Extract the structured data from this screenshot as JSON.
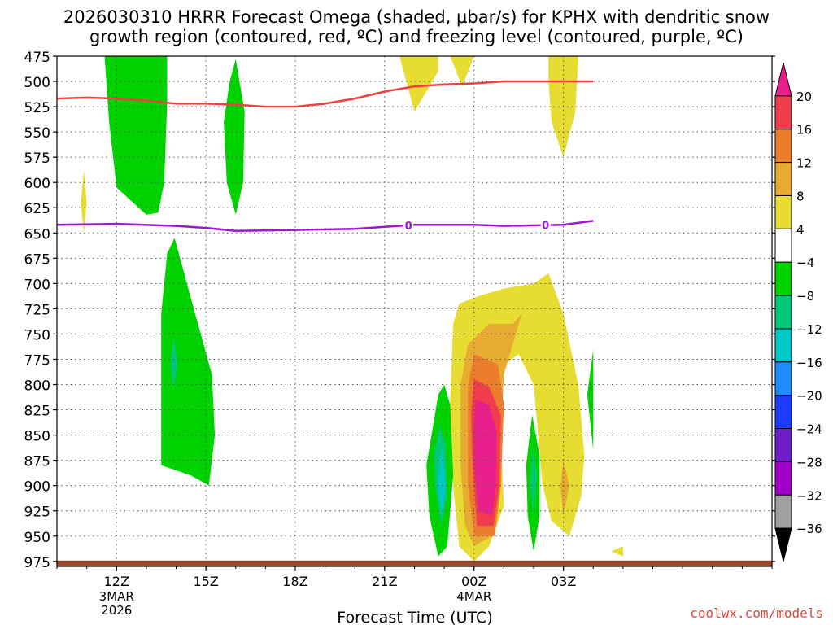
{
  "title_line1": "2026030310 HRRR Forecast Omega (shaded, µbar/s) for KPHX with dendritic snow",
  "title_line2": "growth region (contoured, red, ºC) and freezing level (contoured, purple, ºC)",
  "credit": "coolwx.com/models",
  "chart_data": {
    "type": "time-height cross section (filled contour + line contours)",
    "xlabel": "Forecast Time (UTC)",
    "x_range_hours": [
      0,
      24
    ],
    "x_ticks": [
      {
        "hour": 2,
        "label": "12Z",
        "sub": [
          "3MAR",
          "2026"
        ]
      },
      {
        "hour": 5,
        "label": "15Z",
        "sub": []
      },
      {
        "hour": 8,
        "label": "18Z",
        "sub": []
      },
      {
        "hour": 11,
        "label": "21Z",
        "sub": []
      },
      {
        "hour": 14,
        "label": "00Z",
        "sub": [
          "4MAR"
        ]
      },
      {
        "hour": 17,
        "label": "03Z",
        "sub": []
      }
    ],
    "y_axis": "pressure (hPa), inverted",
    "ylim": [
      475,
      980
    ],
    "y_ticks": [
      475,
      500,
      525,
      550,
      575,
      600,
      625,
      650,
      675,
      700,
      725,
      750,
      775,
      800,
      825,
      850,
      875,
      900,
      925,
      950,
      975
    ],
    "colorbar": {
      "labels": [
        "20",
        "16",
        "12",
        "8",
        "4",
        "−4",
        "−8",
        "−12",
        "−16",
        "−20",
        "−24",
        "−28",
        "−32",
        "−36"
      ],
      "bins": [
        {
          "range": ">20",
          "color": "#e8208c"
        },
        {
          "range": "16 to 20",
          "color": "#f03c4b"
        },
        {
          "range": "12 to 16",
          "color": "#ec7d2c"
        },
        {
          "range": "8 to 12",
          "color": "#e6ab30"
        },
        {
          "range": "4 to 8",
          "color": "#e6dc32"
        },
        {
          "range": "-4 to 4",
          "color": "#ffffff"
        },
        {
          "range": "-8 to -4",
          "color": "#00d200"
        },
        {
          "range": "-12 to -8",
          "color": "#00c878"
        },
        {
          "range": "-16 to -12",
          "color": "#00c8c8"
        },
        {
          "range": "-20 to -16",
          "color": "#1e8cff"
        },
        {
          "range": "-24 to -20",
          "color": "#1e3cff"
        },
        {
          "range": "-28 to -24",
          "color": "#6e1ec8"
        },
        {
          "range": "-32 to -28",
          "color": "#a000c8"
        },
        {
          "range": "-36 to -32",
          "color": "#a0a0a0"
        },
        {
          "range": "<-36",
          "color": "#000000"
        }
      ]
    },
    "freezing_level": {
      "label": "0",
      "color": "#9a18d2",
      "points": [
        [
          0,
          642
        ],
        [
          2,
          641
        ],
        [
          4,
          643
        ],
        [
          5,
          645
        ],
        [
          6,
          648
        ],
        [
          8,
          647
        ],
        [
          10,
          646
        ],
        [
          11,
          644
        ],
        [
          12,
          642
        ],
        [
          14,
          642
        ],
        [
          15,
          643
        ],
        [
          17,
          642
        ],
        [
          18,
          638
        ]
      ]
    },
    "dgz_top_contour": {
      "color": "#f04040",
      "points": [
        [
          0,
          517
        ],
        [
          1,
          516
        ],
        [
          2,
          517
        ],
        [
          3,
          519
        ],
        [
          4,
          522
        ],
        [
          5,
          522
        ],
        [
          6,
          523
        ],
        [
          7,
          525
        ],
        [
          8,
          525
        ],
        [
          9,
          522
        ],
        [
          10,
          517
        ],
        [
          11,
          510
        ],
        [
          12,
          505
        ],
        [
          13,
          503
        ],
        [
          14,
          502
        ],
        [
          15,
          500
        ],
        [
          16,
          500
        ],
        [
          17,
          500
        ],
        [
          18,
          500
        ]
      ]
    },
    "omega_regions": [
      {
        "value": "-4 to -8",
        "color": "#00d200",
        "points": [
          [
            1.6,
            475
          ],
          [
            3.7,
            475
          ],
          [
            3.7,
            520
          ],
          [
            3.6,
            600
          ],
          [
            3.4,
            630
          ],
          [
            3.0,
            632
          ],
          [
            2.0,
            605
          ],
          [
            1.75,
            540
          ]
        ]
      },
      {
        "value": "-4 to -8",
        "color": "#00d200",
        "points": [
          [
            6.0,
            478
          ],
          [
            6.3,
            530
          ],
          [
            6.25,
            600
          ],
          [
            6.0,
            632
          ],
          [
            5.7,
            600
          ],
          [
            5.6,
            540
          ],
          [
            5.8,
            500
          ]
        ]
      },
      {
        "value": "-4 to -8",
        "color": "#00d200",
        "points": [
          [
            3.95,
            655
          ],
          [
            4.5,
            715
          ],
          [
            5.2,
            790
          ],
          [
            5.3,
            850
          ],
          [
            5.1,
            900
          ],
          [
            4.5,
            890
          ],
          [
            3.5,
            880
          ],
          [
            3.5,
            730
          ],
          [
            3.7,
            670
          ]
        ]
      },
      {
        "value": "-8 to -12",
        "color": "#00c878",
        "points": [
          [
            3.92,
            752
          ],
          [
            4.05,
            780
          ],
          [
            3.92,
            805
          ],
          [
            3.8,
            780
          ]
        ]
      },
      {
        "value": "4 to 8",
        "color": "#e6dc32",
        "points": [
          [
            12.3,
            475
          ],
          [
            12.8,
            475
          ],
          [
            12.8,
            490
          ],
          [
            12.0,
            530
          ],
          [
            11.5,
            475
          ]
        ]
      },
      {
        "value": "4 to 8",
        "color": "#e6dc32",
        "points": [
          [
            0.9,
            588
          ],
          [
            1.0,
            620
          ],
          [
            0.9,
            650
          ],
          [
            0.8,
            620
          ]
        ]
      },
      {
        "value": "4 to 8",
        "color": "#e6dc32",
        "points": [
          [
            13.2,
            475
          ],
          [
            14.0,
            475
          ],
          [
            13.8,
            490
          ],
          [
            13.6,
            505
          ],
          [
            13.4,
            490
          ]
        ]
      },
      {
        "value": "4 to 8",
        "color": "#e6dc32",
        "points": [
          [
            16.5,
            475
          ],
          [
            17.5,
            475
          ],
          [
            17.4,
            530
          ],
          [
            17.0,
            575
          ],
          [
            16.6,
            540
          ],
          [
            16.5,
            500
          ]
        ]
      },
      {
        "value": "4 to 8",
        "color": "#e6dc32",
        "points": [
          [
            13.3,
            740
          ],
          [
            13.5,
            720
          ],
          [
            14.2,
            712
          ],
          [
            15.0,
            705
          ],
          [
            16.0,
            700
          ],
          [
            16.5,
            690
          ],
          [
            17.0,
            730
          ],
          [
            17.5,
            800
          ],
          [
            17.7,
            870
          ],
          [
            17.6,
            910
          ],
          [
            17.2,
            950
          ],
          [
            16.6,
            935
          ],
          [
            16.3,
            900
          ],
          [
            16.0,
            800
          ],
          [
            15.5,
            770
          ],
          [
            15.0,
            780
          ],
          [
            14.9,
            860
          ],
          [
            15.0,
            920
          ],
          [
            14.5,
            960
          ],
          [
            14.0,
            975
          ],
          [
            13.5,
            960
          ],
          [
            13.3,
            900
          ],
          [
            13.2,
            820
          ]
        ]
      },
      {
        "value": "4 to 8",
        "color": "#e6dc32",
        "points": [
          [
            19.0,
            960
          ],
          [
            18.6,
            965
          ],
          [
            19.0,
            970
          ]
        ]
      },
      {
        "value": "8 to 12",
        "color": "#e6ab30",
        "points": [
          [
            13.8,
            760
          ],
          [
            14.5,
            740
          ],
          [
            15.3,
            740
          ],
          [
            15.6,
            730
          ],
          [
            15.3,
            760
          ],
          [
            15.0,
            790
          ],
          [
            14.9,
            850
          ],
          [
            14.9,
            900
          ],
          [
            14.6,
            950
          ],
          [
            14.0,
            960
          ],
          [
            13.7,
            940
          ],
          [
            13.55,
            880
          ],
          [
            13.55,
            800
          ]
        ]
      },
      {
        "value": "8 to 12",
        "color": "#e6ab30",
        "points": [
          [
            17.0,
            875
          ],
          [
            17.2,
            900
          ],
          [
            17.0,
            930
          ],
          [
            16.9,
            900
          ]
        ]
      },
      {
        "value": "12 to 16",
        "color": "#ec7d2c",
        "points": [
          [
            14.0,
            770
          ],
          [
            14.8,
            780
          ],
          [
            15.0,
            820
          ],
          [
            14.9,
            900
          ],
          [
            14.7,
            950
          ],
          [
            14.0,
            950
          ],
          [
            13.8,
            900
          ],
          [
            13.8,
            800
          ]
        ]
      },
      {
        "value": "16 to 20",
        "color": "#f03c4b",
        "points": [
          [
            14.0,
            795
          ],
          [
            14.5,
            802
          ],
          [
            14.9,
            830
          ],
          [
            14.85,
            900
          ],
          [
            14.65,
            940
          ],
          [
            14.1,
            940
          ],
          [
            13.95,
            880
          ],
          [
            13.9,
            830
          ]
        ]
      },
      {
        "value": ">20",
        "color": "#e8208c",
        "points": [
          [
            14.05,
            815
          ],
          [
            14.5,
            820
          ],
          [
            14.75,
            845
          ],
          [
            14.75,
            900
          ],
          [
            14.6,
            930
          ],
          [
            14.15,
            925
          ],
          [
            14.0,
            880
          ],
          [
            14.0,
            840
          ]
        ]
      },
      {
        "value": "-4 to -8",
        "color": "#00d200",
        "points": [
          [
            12.8,
            810
          ],
          [
            13.0,
            800
          ],
          [
            13.2,
            820
          ],
          [
            13.3,
            890
          ],
          [
            13.1,
            960
          ],
          [
            12.8,
            970
          ],
          [
            12.5,
            930
          ],
          [
            12.4,
            880
          ]
        ]
      },
      {
        "value": "-8 to -12",
        "color": "#00c878",
        "points": [
          [
            12.85,
            840
          ],
          [
            13.05,
            860
          ],
          [
            13.1,
            910
          ],
          [
            12.9,
            940
          ],
          [
            12.7,
            900
          ],
          [
            12.65,
            870
          ]
        ]
      },
      {
        "value": "-12 to -16",
        "color": "#00c8c8",
        "points": [
          [
            12.9,
            860
          ],
          [
            13.05,
            900
          ],
          [
            12.9,
            930
          ],
          [
            12.78,
            900
          ]
        ]
      },
      {
        "value": "-4 to -8",
        "color": "#00d200",
        "points": [
          [
            15.95,
            830
          ],
          [
            16.2,
            870
          ],
          [
            16.2,
            930
          ],
          [
            16.0,
            965
          ],
          [
            15.8,
            930
          ],
          [
            15.75,
            880
          ]
        ]
      },
      {
        "value": "-8 to -12",
        "color": "#00c878",
        "points": [
          [
            15.97,
            860
          ],
          [
            16.1,
            890
          ],
          [
            16.0,
            930
          ],
          [
            15.88,
            900
          ]
        ]
      },
      {
        "value": "-4 to -8",
        "color": "#00d200",
        "points": [
          [
            18.0,
            765
          ],
          [
            17.8,
            810
          ],
          [
            18.0,
            865
          ]
        ]
      }
    ],
    "ground": {
      "color": "#9a4a2a",
      "pressure": 975
    }
  }
}
